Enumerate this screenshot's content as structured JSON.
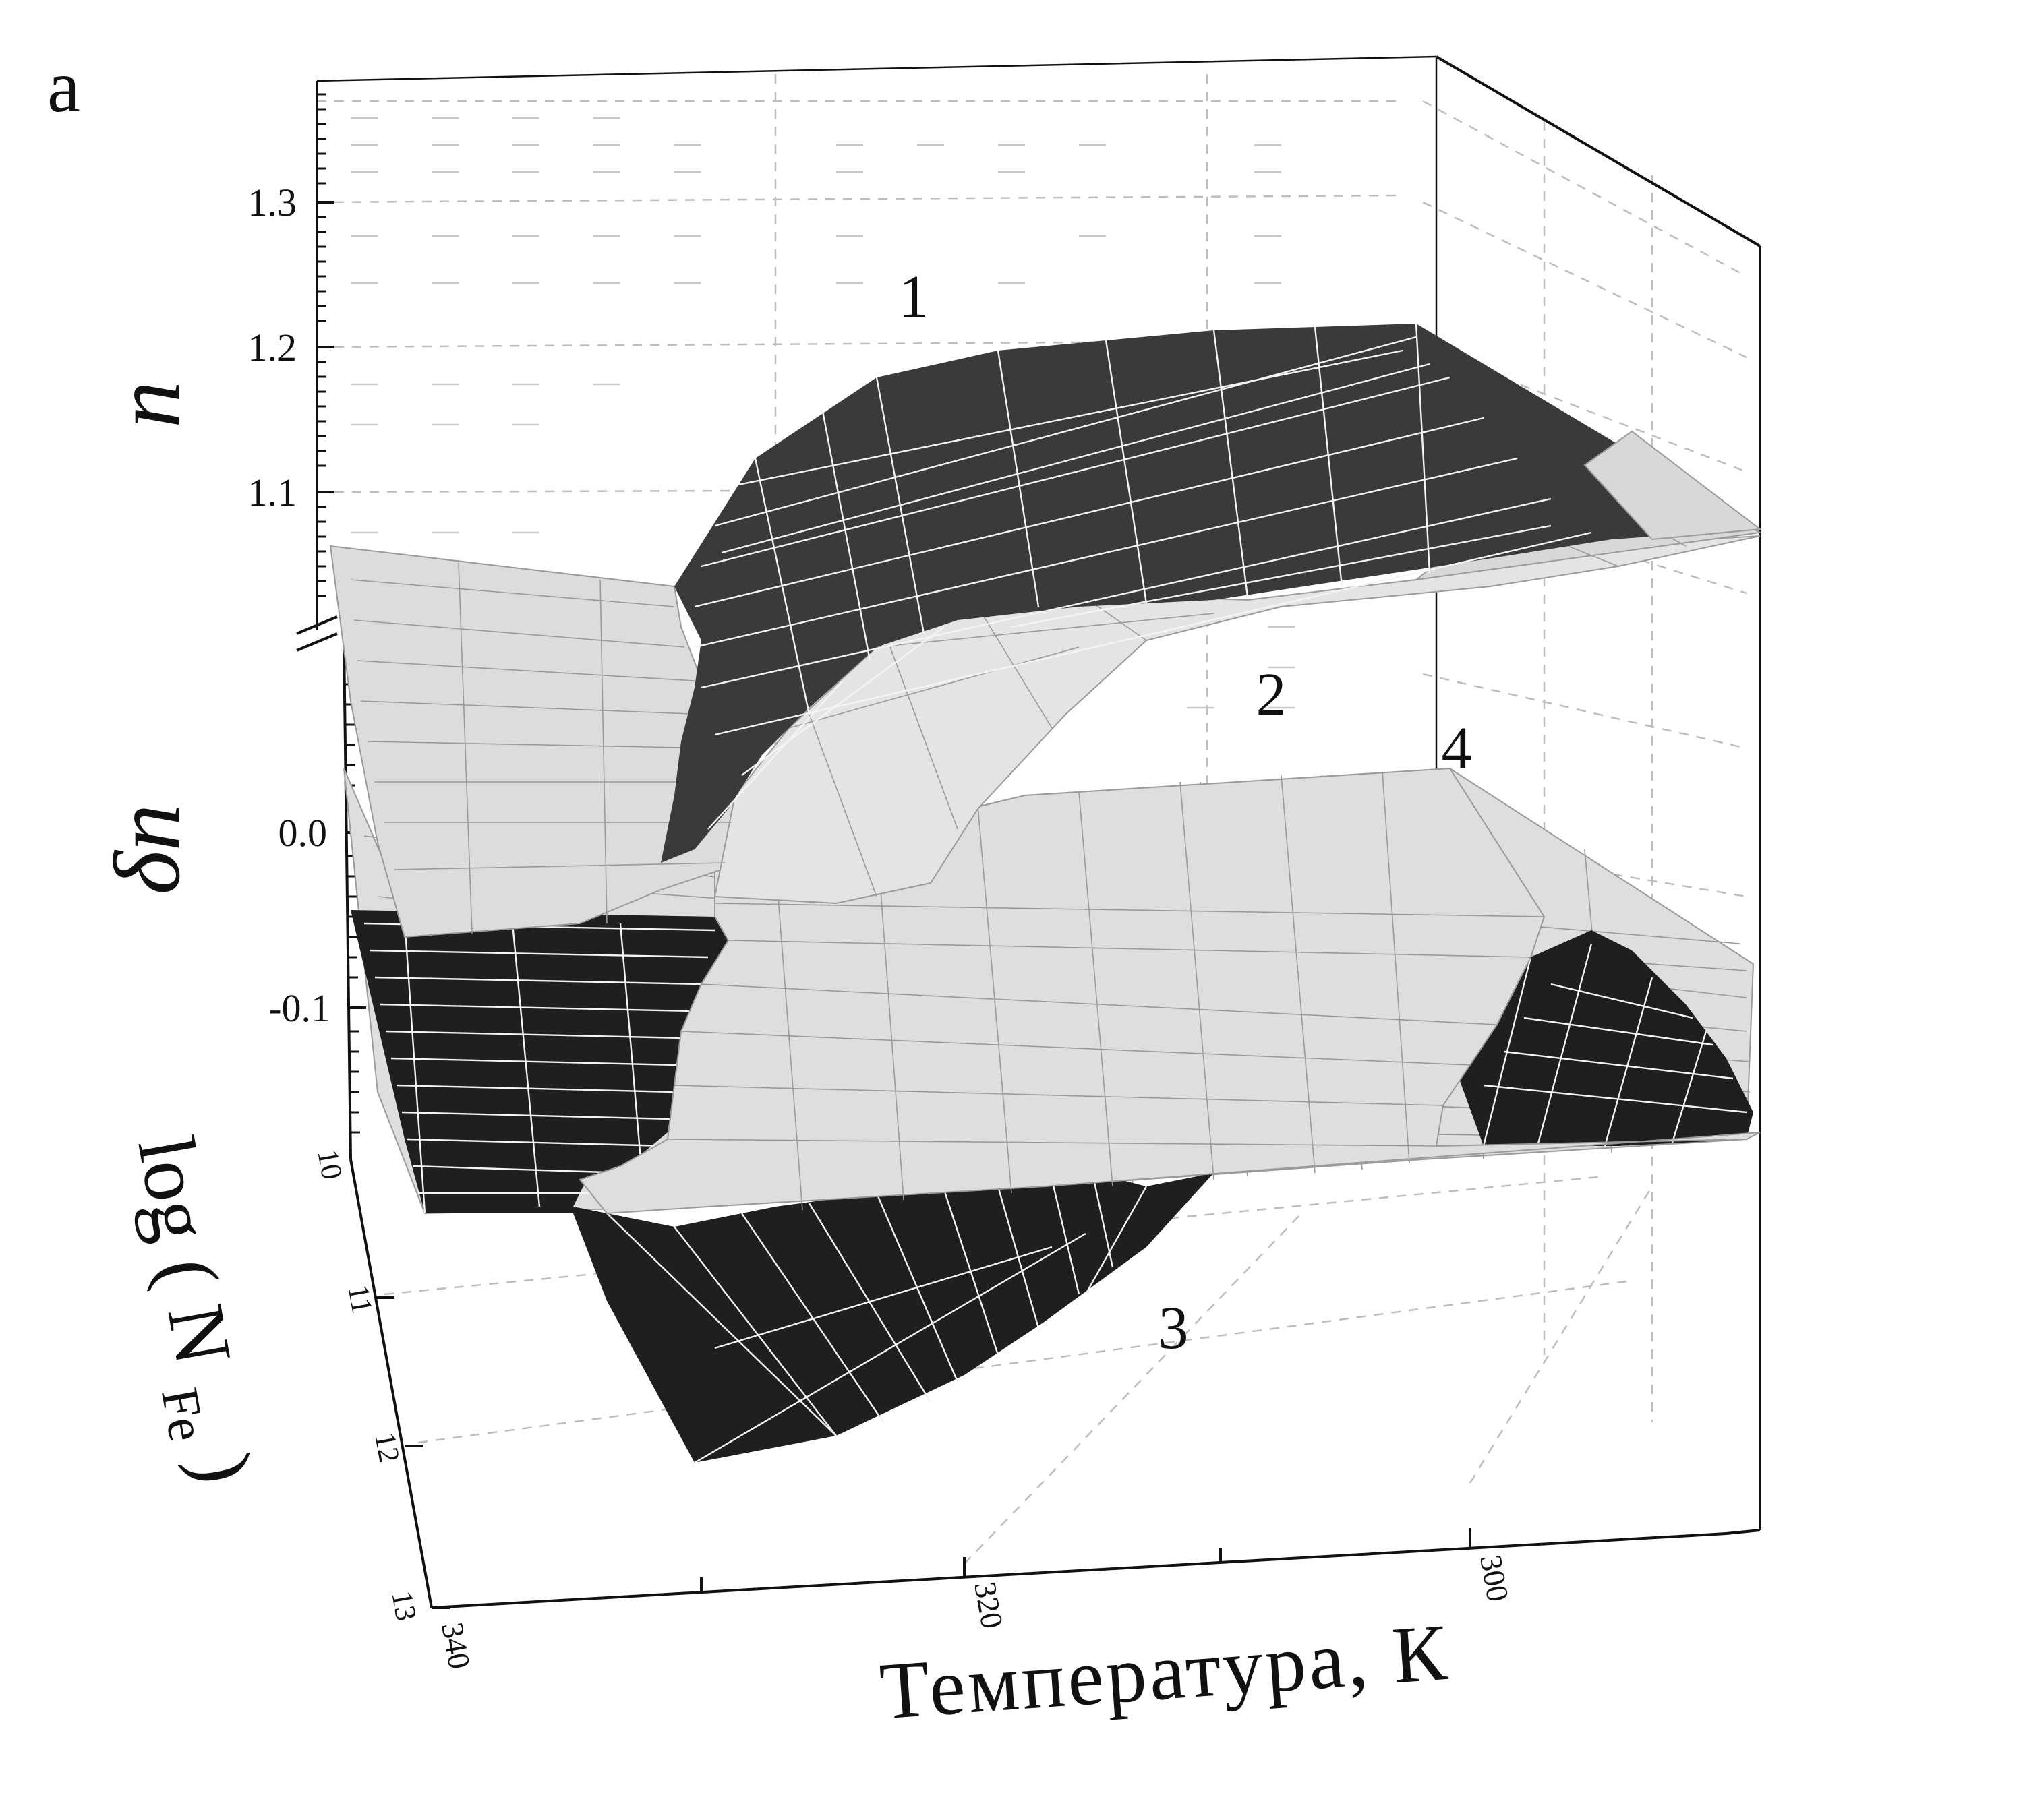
{
  "chart_data": {
    "type": "surface3d",
    "panel_label": "a",
    "z_axis_upper": {
      "label": "n",
      "ticks": [
        "1.1",
        "1.2",
        "1.3"
      ]
    },
    "z_axis_lower": {
      "label": "δn",
      "ticks": [
        "0.0",
        "-0.1"
      ]
    },
    "x_axis": {
      "label": "Температура, К",
      "ticks": [
        "340",
        "320",
        "300"
      ]
    },
    "y_axis": {
      "label_main": "log ( N",
      "label_sub": "Fe",
      "label_close": " )",
      "ticks": [
        "10",
        "11",
        "12",
        "13"
      ]
    },
    "surfaces": [
      {
        "label": "1",
        "shade": "dark",
        "panel": "n"
      },
      {
        "label": "2",
        "shade": "light",
        "panel": "n"
      },
      {
        "label": "3",
        "shade": "dark",
        "panel": "δn"
      },
      {
        "label": "4",
        "shade": "light",
        "panel": "δn"
      }
    ]
  }
}
